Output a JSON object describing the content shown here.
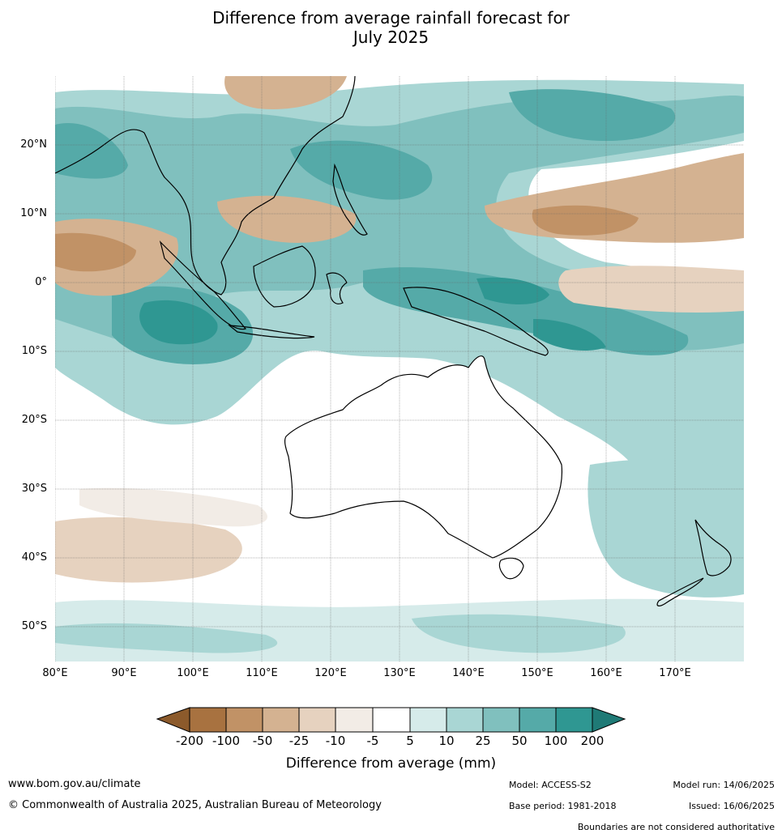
{
  "title": {
    "line1": "Difference from average rainfall forecast for",
    "line2": "July 2025"
  },
  "map": {
    "lat_labels": [
      "20°N",
      "10°N",
      "0°",
      "10°S",
      "20°S",
      "30°S",
      "40°S",
      "50°S"
    ],
    "lon_labels": [
      "80°E",
      "90°E",
      "100°E",
      "110°E",
      "120°E",
      "130°E",
      "140°E",
      "150°E",
      "160°E",
      "170°E"
    ]
  },
  "legend": {
    "ticks": [
      "-200",
      "-100",
      "-50",
      "-25",
      "-10",
      "-5",
      "5",
      "10",
      "25",
      "50",
      "100",
      "200"
    ],
    "label": "Difference from average (mm)",
    "colors": {
      "below_200": "#8c5a2b",
      "m200_m100": "#a87240",
      "m100_m50": "#c19266",
      "m50_m25": "#d4b291",
      "m25_m10": "#e6d2bf",
      "m10_m5": "#f2ece6",
      "m5_5": "#ffffff",
      "p5_10": "#d6ebea",
      "p10_25": "#a9d6d4",
      "p25_50": "#80c0be",
      "p50_100": "#55aaa8",
      "p100_200": "#2f9792",
      "above_200": "#1f7a76"
    }
  },
  "footer": {
    "website": "www.bom.gov.au/climate",
    "copyright": "© Commonwealth of Australia 2025, Australian Bureau of Meteorology",
    "model": "Model: ACCESS-S2",
    "base_period": "Base period: 1981-2018",
    "model_run": "Model run: 14/06/2025",
    "issued": "Issued: 16/06/2025",
    "disclaimer": "Boundaries are not considered authoritative"
  }
}
